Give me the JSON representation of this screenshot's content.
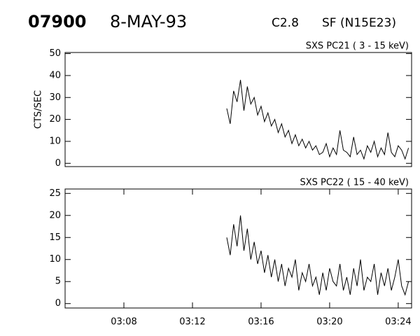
{
  "header": {
    "id": "07900",
    "date": "8-MAY-93",
    "class": "C2.8",
    "flare": "SF (N15E23)"
  },
  "chart_data": [
    {
      "type": "line",
      "title": "SXS PC21  (  3 - 15 keV)",
      "ylabel": "CTS/SEC",
      "color": "#000000",
      "xlim": [
        4.57,
        24.78
      ],
      "ylim": [
        -1.5,
        50.5
      ],
      "yticks": [
        0,
        10,
        20,
        30,
        40,
        50
      ],
      "x": [
        14,
        14.2,
        14.4,
        14.6,
        14.8,
        15,
        15.2,
        15.4,
        15.6,
        15.8,
        16,
        16.2,
        16.4,
        16.6,
        16.8,
        17,
        17.2,
        17.4,
        17.6,
        17.8,
        18,
        18.2,
        18.4,
        18.6,
        18.8,
        19,
        19.2,
        19.4,
        19.6,
        19.8,
        20,
        20.2,
        20.4,
        20.6,
        20.8,
        21,
        21.2,
        21.4,
        21.6,
        21.8,
        22,
        22.2,
        22.4,
        22.6,
        22.8,
        23,
        23.2,
        23.4,
        23.6,
        23.8,
        24,
        24.2,
        24.4,
        24.6
      ],
      "values": [
        25,
        18,
        33,
        28,
        38,
        24,
        35,
        27,
        30,
        22,
        26,
        19,
        23,
        17,
        20,
        14,
        18,
        12,
        15,
        9,
        13,
        8,
        11,
        7,
        10,
        6,
        8,
        4,
        5,
        9,
        3,
        7,
        4,
        15,
        6,
        5,
        3,
        12,
        4,
        6,
        2,
        8,
        5,
        10,
        3,
        7,
        4,
        14,
        5,
        3,
        8,
        6,
        2,
        7
      ]
    },
    {
      "type": "line",
      "title": "SXS PC22  ( 15 - 40 keV)",
      "color": "#000000",
      "xlim": [
        4.57,
        24.78
      ],
      "ylim": [
        -1,
        26
      ],
      "yticks": [
        0,
        5,
        10,
        15,
        20,
        25
      ],
      "xticks": [
        {
          "value": 8,
          "label": "03:08"
        },
        {
          "value": 12,
          "label": "03:12"
        },
        {
          "value": 16,
          "label": "03:16"
        },
        {
          "value": 20,
          "label": "03:20"
        },
        {
          "value": 24,
          "label": "03:24"
        }
      ],
      "x": [
        14,
        14.2,
        14.4,
        14.6,
        14.8,
        15,
        15.2,
        15.4,
        15.6,
        15.8,
        16,
        16.2,
        16.4,
        16.6,
        16.8,
        17,
        17.2,
        17.4,
        17.6,
        17.8,
        18,
        18.2,
        18.4,
        18.6,
        18.8,
        19,
        19.2,
        19.4,
        19.6,
        19.8,
        20,
        20.2,
        20.4,
        20.6,
        20.8,
        21,
        21.2,
        21.4,
        21.6,
        21.8,
        22,
        22.2,
        22.4,
        22.6,
        22.8,
        23,
        23.2,
        23.4,
        23.6,
        23.8,
        24,
        24.2,
        24.4,
        24.6
      ],
      "values": [
        15,
        11,
        18,
        13,
        20,
        12,
        17,
        10,
        14,
        9,
        12,
        7,
        11,
        6,
        10,
        5,
        9,
        4,
        8,
        6,
        10,
        3,
        7,
        5,
        9,
        4,
        6,
        2,
        7,
        3,
        8,
        5,
        4,
        9,
        3,
        6,
        2,
        8,
        4,
        10,
        3,
        6,
        5,
        9,
        2,
        7,
        4,
        8,
        3,
        6,
        10,
        4,
        2,
        5
      ]
    }
  ]
}
